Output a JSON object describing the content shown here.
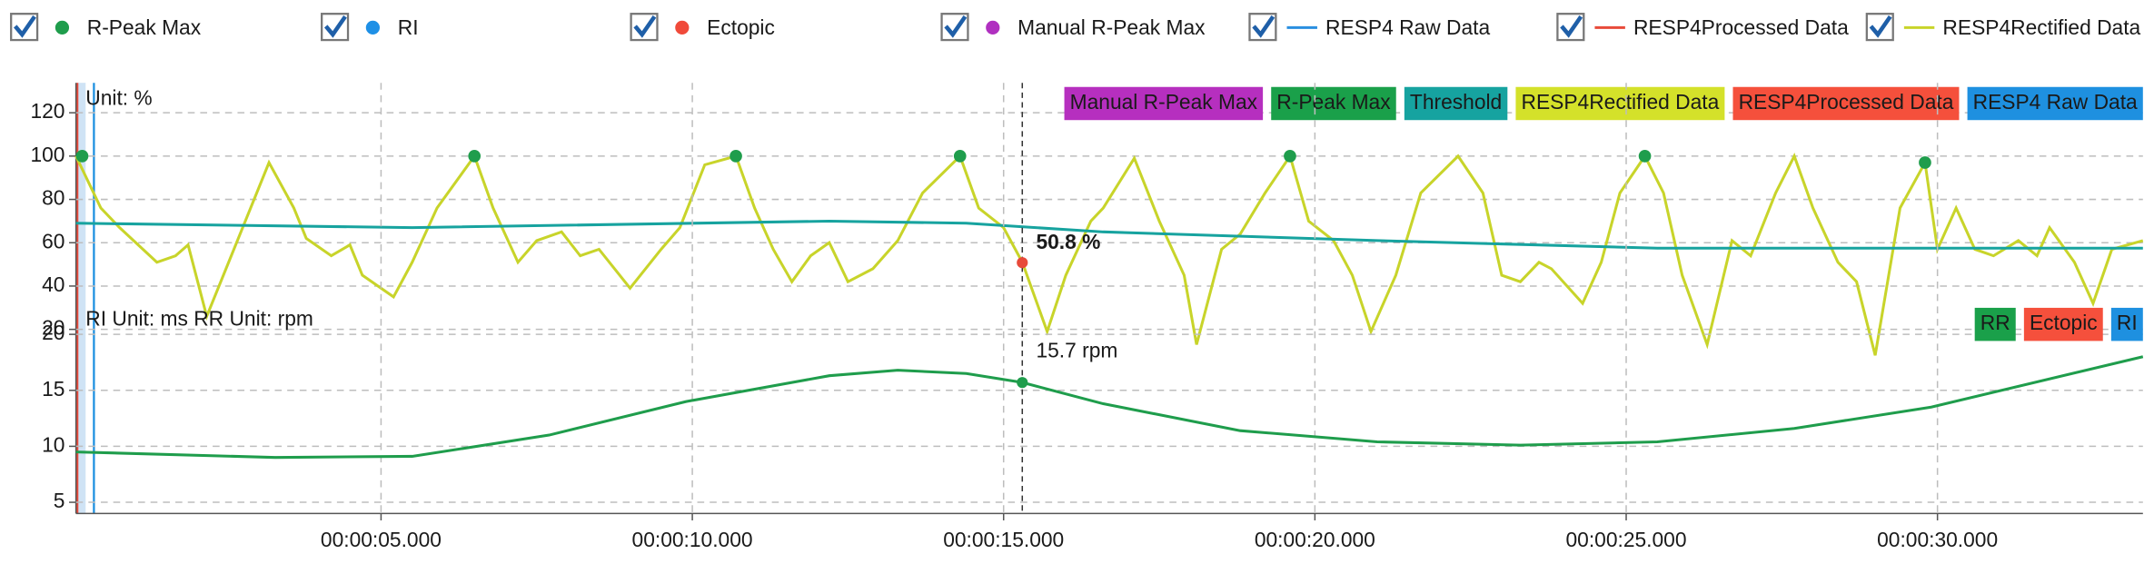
{
  "legend": [
    {
      "label": "R-Peak Max",
      "color": "#1f9d4c",
      "marker": "dot",
      "checked": true
    },
    {
      "label": "RI",
      "color": "#1e90e6",
      "marker": "dot",
      "checked": true
    },
    {
      "label": "Ectopic",
      "color": "#f04a3a",
      "marker": "dot",
      "checked": true
    },
    {
      "label": "Manual R-Peak Max",
      "color": "#b030c0",
      "marker": "dot",
      "checked": true
    },
    {
      "label": "RESP4 Raw Data",
      "color": "#2a8fe0",
      "marker": "line",
      "checked": true
    },
    {
      "label": "RESP4Processed Data",
      "color": "#e84a3a",
      "marker": "line",
      "checked": true
    },
    {
      "label": "RESP4Rectified Data",
      "color": "#c8d42a",
      "marker": "line",
      "checked": true
    }
  ],
  "chart_data": [
    {
      "type": "line",
      "unit_label": "Unit: %",
      "xlim": [
        0.1,
        33.3
      ],
      "ylim": [
        0,
        130
      ],
      "yticks": [
        20,
        40,
        60,
        80,
        100,
        120
      ],
      "grid": true,
      "series": [
        {
          "color": "#c8d42a",
          "x": [
            0.1,
            0.5,
            0.8,
            1.4,
            1.7,
            1.9,
            2.2,
            3.2,
            3.6,
            3.8,
            4.2,
            4.5,
            4.7,
            5.2,
            5.5,
            5.9,
            6.5,
            6.8,
            7.2,
            7.5,
            7.9,
            8.2,
            8.5,
            9.0,
            9.5,
            9.8,
            10.2,
            10.7,
            11.0,
            11.3,
            11.6,
            11.9,
            12.2,
            12.5,
            12.9,
            13.3,
            13.7,
            14.3,
            14.6,
            15.0,
            15.3,
            15.7,
            16.0,
            16.4,
            16.6,
            17.1,
            17.5,
            17.9,
            18.1,
            18.5,
            18.8,
            19.2,
            19.6,
            19.9,
            20.3,
            20.6,
            20.9,
            21.3,
            21.7,
            22.3,
            22.7,
            23.0,
            23.3,
            23.6,
            23.8,
            24.3,
            24.6,
            24.9,
            25.3,
            25.6,
            25.9,
            26.3,
            26.7,
            27.0,
            27.4,
            27.7,
            28.0,
            28.4,
            28.7,
            29.0,
            29.4,
            29.8,
            30.0,
            30.3,
            30.6,
            30.9,
            31.3,
            31.6,
            31.8,
            32.2,
            32.5,
            32.8,
            33.3
          ],
          "values": [
            100,
            76,
            67,
            51,
            54,
            59,
            26,
            97,
            76,
            62,
            54,
            59,
            45,
            35,
            51,
            76,
            100,
            76,
            51,
            61,
            65,
            54,
            57,
            39,
            57,
            67,
            96,
            100,
            76,
            57,
            42,
            54,
            60,
            42,
            48,
            61,
            83,
            100,
            76,
            67,
            51,
            19,
            45,
            70,
            76,
            99,
            70,
            45,
            13,
            57,
            64,
            83,
            100,
            70,
            61,
            45,
            19,
            45,
            83,
            100,
            83,
            45,
            42,
            51,
            48,
            32,
            51,
            83,
            100,
            83,
            45,
            13,
            61,
            54,
            83,
            100,
            76,
            51,
            42,
            8,
            76,
            97,
            57,
            76,
            57,
            54,
            61,
            54,
            67,
            51,
            32,
            57,
            61
          ]
        },
        {
          "color": "#17a39f",
          "x": [
            0.1,
            5.5,
            12.2,
            14.4,
            16.6,
            21.0,
            25.5,
            33.3
          ],
          "values": [
            69,
            67,
            70,
            69,
            65,
            61,
            57.5,
            57.5
          ]
        },
        {
          "color": "#1f9d4c",
          "marker": "dot",
          "x": [
            0.2,
            6.5,
            10.7,
            14.3,
            19.6,
            25.3,
            29.8
          ],
          "values": [
            100,
            100,
            100,
            100,
            100,
            100,
            97
          ]
        }
      ],
      "cursor": {
        "x": 15.3,
        "value": 50.8,
        "label": "50.8 %"
      },
      "tags": [
        {
          "label": "Manual R-Peak Max",
          "color": "#b62fbf",
          "text_color": "#ffffff"
        },
        {
          "label": "R-Peak Max",
          "color": "#1aa04a",
          "text_color": "#ffffff"
        },
        {
          "label": "Threshold",
          "color": "#16a3a0",
          "text_color": "#ffffff"
        },
        {
          "label": "RESP4Rectified Data",
          "color": "#d4e12a",
          "text_color": "#1a1a1a"
        },
        {
          "label": "RESP4Processed Data",
          "color": "#f5503c",
          "text_color": "#ffffff"
        },
        {
          "label": "RESP4 Raw Data",
          "color": "#1e90e0",
          "text_color": "#ffffff"
        }
      ]
    },
    {
      "type": "line",
      "unit_label": "RI Unit: ms RR Unit: rpm",
      "xlim": [
        0.1,
        33.3
      ],
      "ylim": [
        4,
        22
      ],
      "yticks": [
        5,
        10,
        15,
        20
      ],
      "grid": true,
      "xticks": [
        {
          "value": 5,
          "label": "00:00:05.000"
        },
        {
          "value": 10,
          "label": "00:00:10.000"
        },
        {
          "value": 15,
          "label": "00:00:15.000"
        },
        {
          "value": 20,
          "label": "00:00:20.000"
        },
        {
          "value": 25,
          "label": "00:00:25.000"
        },
        {
          "value": 30,
          "label": "00:00:30.000"
        }
      ],
      "series": [
        {
          "color": "#1f9d4c",
          "x": [
            0.1,
            3.3,
            5.5,
            7.7,
            9.9,
            12.2,
            13.3,
            14.4,
            15.3,
            16.6,
            18.8,
            21.0,
            23.3,
            25.5,
            27.7,
            29.9,
            33.3
          ],
          "values": [
            9.5,
            9.0,
            9.1,
            11,
            14,
            16.3,
            16.8,
            16.5,
            15.7,
            13.8,
            11.4,
            10.4,
            10.1,
            10.4,
            11.6,
            13.5,
            18
          ]
        }
      ],
      "cursor": {
        "x": 15.3,
        "value": 15.7,
        "label": "15.7 rpm"
      },
      "tags": [
        {
          "label": "RR",
          "color": "#1aa04a",
          "text_color": "#ffffff"
        },
        {
          "label": "Ectopic",
          "color": "#f5503c",
          "text_color": "#ffffff"
        },
        {
          "label": "RI",
          "color": "#1e90e0",
          "text_color": "#ffffff"
        }
      ]
    }
  ]
}
